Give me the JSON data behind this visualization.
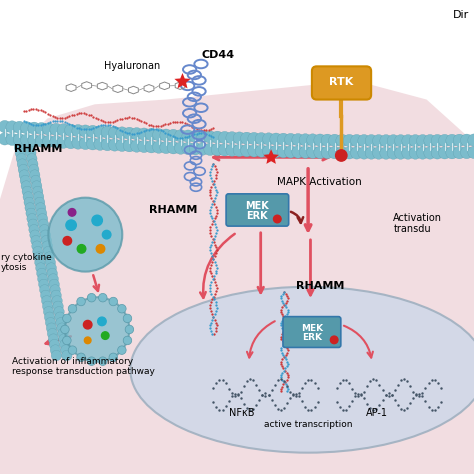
{
  "bg_color": "#ffffff",
  "cell_bg": "#f0d8dc",
  "nucleus_bg": "#d0d8e8",
  "membrane_color": "#7bbccc",
  "membrane_dark": "#5a9aaa",
  "title_text": "Dir",
  "label_hyaluronan": "Hyaluronan",
  "label_cd44": "CD44",
  "label_rhamm_top": "RHAMM",
  "label_rhamm_mid": "RHAMM",
  "label_rhamm_nuc": "RHAMM",
  "label_rtk": "RTK",
  "label_mapk": "MAPK Activation",
  "label_nfkb": "NFκB",
  "label_ap1": "AP-1",
  "label_active_trans": "active transcription",
  "label_inflam": "Activation of inflammatory\nresponse transduction pathway",
  "label_cytokine": "ry cytokine\nytosis",
  "label_activation_right": "Activation\ntransdu",
  "red_arrow_color": "#e05060",
  "dark_red_arrow": "#8b2020",
  "star_color": "#dd2222",
  "dot_red": "#cc2222",
  "dot_green": "#22aa22",
  "dot_orange": "#dd8800",
  "dot_purple": "#882288",
  "dot_cyan": "#22aacc",
  "mek_erk_color": "#5599aa",
  "rtk_color": "#dd9922",
  "dna_color": "#445566"
}
